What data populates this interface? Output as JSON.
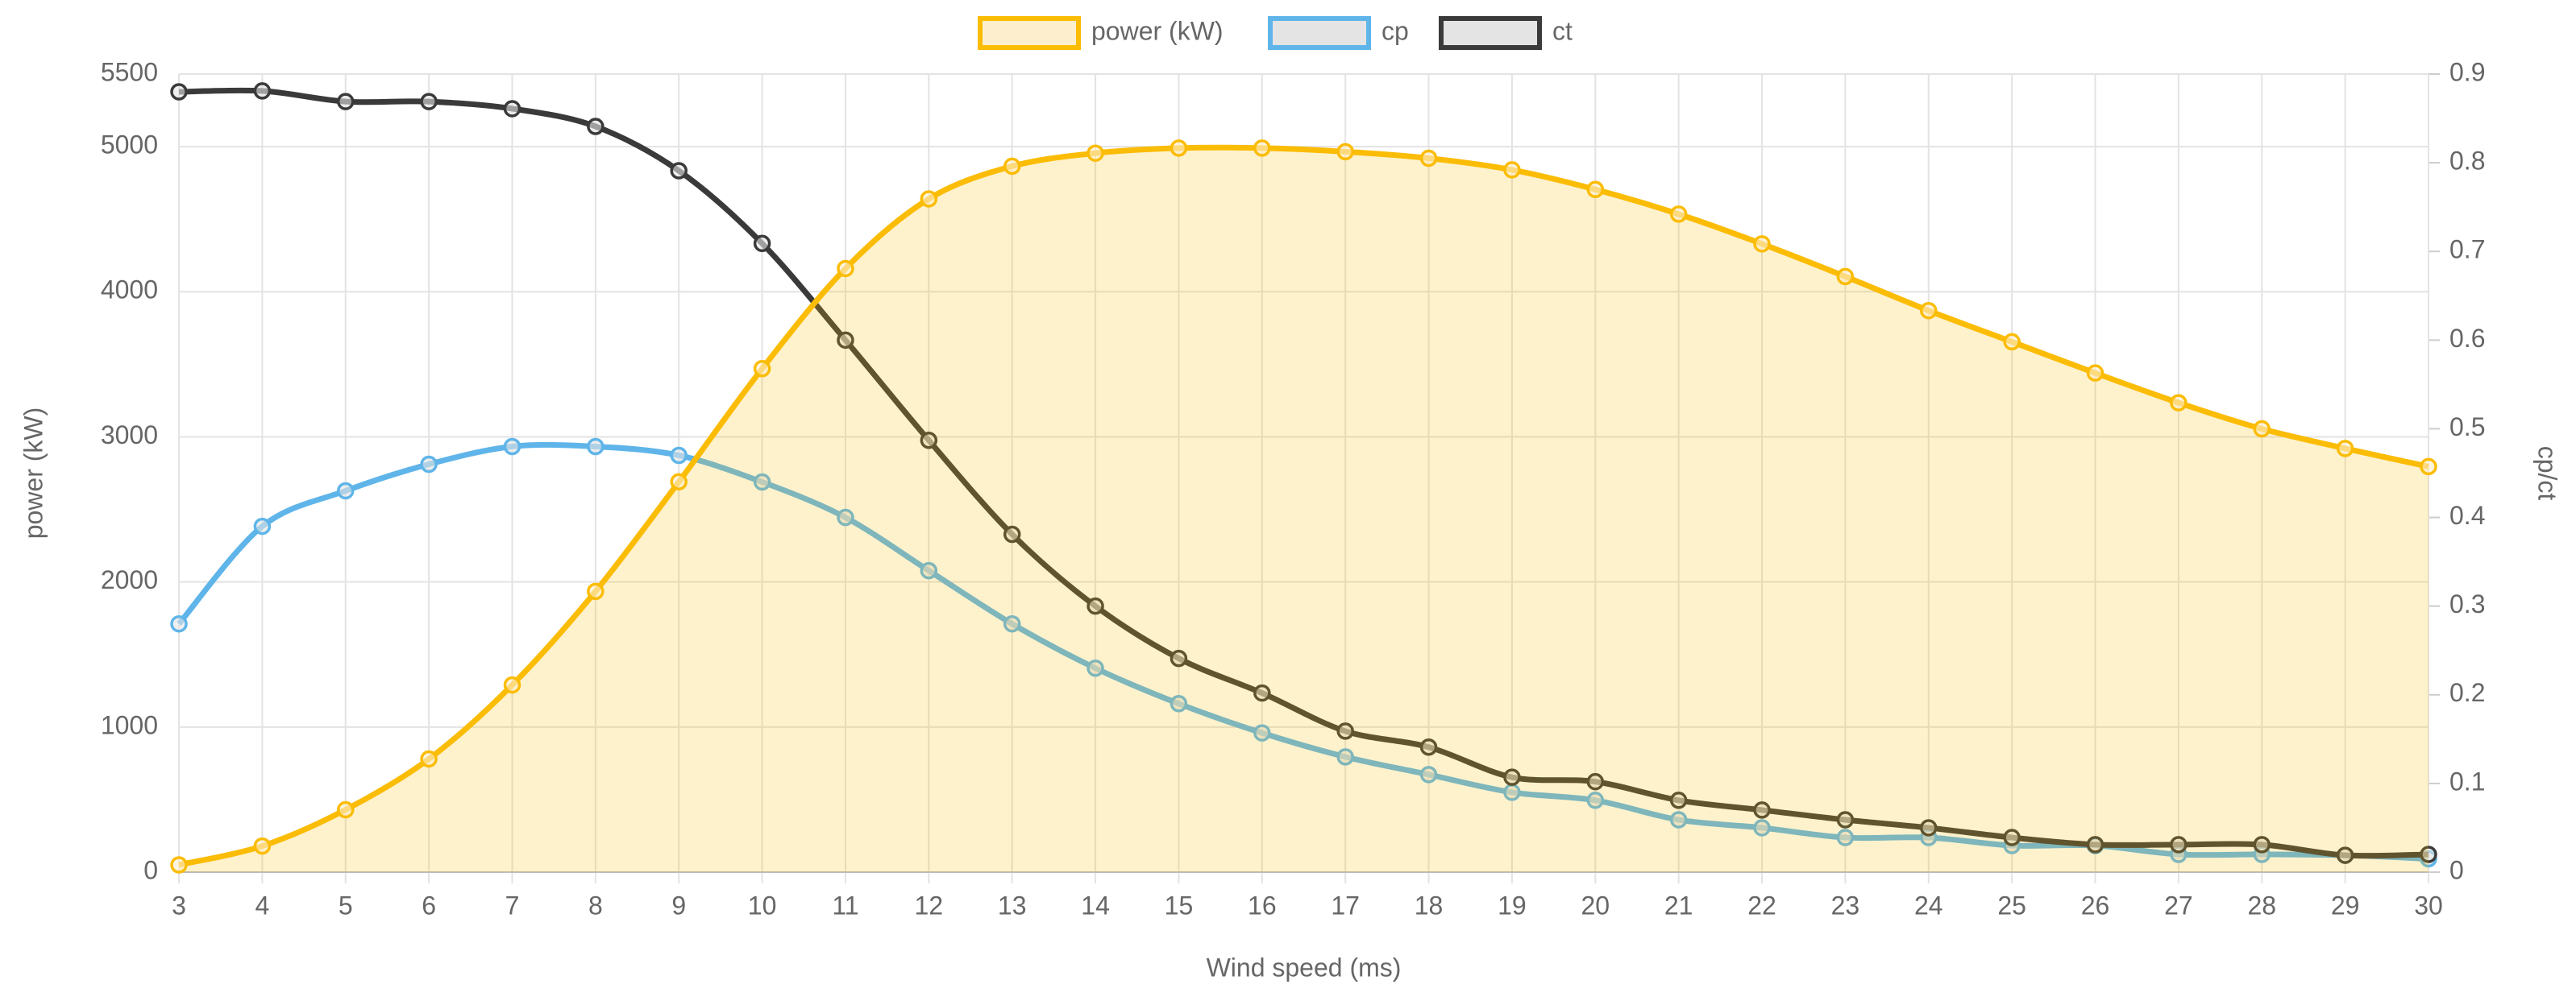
{
  "chart_data": {
    "type": "line",
    "x_label": "Wind speed (ms)",
    "y_label": "power (kW)",
    "y2_label": "cp/ct",
    "x": [
      3,
      4,
      5,
      6,
      7,
      8,
      9,
      10,
      11,
      12,
      13,
      14,
      15,
      16,
      17,
      18,
      19,
      20,
      21,
      22,
      23,
      24,
      25,
      26,
      27,
      28,
      29,
      30
    ],
    "xlim": [
      3,
      30
    ],
    "xticks": [
      3,
      4,
      5,
      6,
      7,
      8,
      9,
      10,
      11,
      12,
      13,
      14,
      15,
      16,
      17,
      18,
      19,
      20,
      21,
      22,
      23,
      24,
      25,
      26,
      27,
      28,
      29,
      30
    ],
    "ylim": [
      0,
      5500
    ],
    "yticks": [
      0,
      1000,
      2000,
      3000,
      4000,
      5000,
      5500
    ],
    "y2lim": [
      0,
      0.9
    ],
    "y2ticks": [
      0,
      0.1,
      0.2,
      0.3,
      0.4,
      0.5,
      0.6,
      0.7,
      0.8,
      0.9
    ],
    "grid": true,
    "legend_position": "top",
    "series": [
      {
        "name": "power (kW)",
        "color": "#fbbc05",
        "fill": "#fdefcd",
        "axis": "y",
        "values": [
          50,
          180,
          430,
          780,
          1290,
          1935,
          2690,
          3470,
          4160,
          4640,
          4865,
          4955,
          4990,
          4990,
          4965,
          4920,
          4840,
          4705,
          4535,
          4330,
          4105,
          3870,
          3655,
          3440,
          3235,
          3055,
          2920,
          2795
        ]
      },
      {
        "name": "cp",
        "color": "#5fb5e9",
        "fill": "#e4e4e4",
        "axis": "y2",
        "values": [
          0.28,
          0.39,
          0.43,
          0.46,
          0.48,
          0.48,
          0.47,
          0.44,
          0.4,
          0.34,
          0.28,
          0.23,
          0.19,
          0.157,
          0.13,
          0.11,
          0.09,
          0.081,
          0.059,
          0.05,
          0.039,
          0.039,
          0.03,
          0.03,
          0.02,
          0.02,
          0.019,
          0.015
        ]
      },
      {
        "name": "ct",
        "color": "#3a3a3a",
        "fill": "#e4e4e4",
        "axis": "y2",
        "values": [
          0.88,
          0.881,
          0.869,
          0.869,
          0.861,
          0.841,
          0.791,
          0.709,
          0.6,
          0.487,
          0.381,
          0.3,
          0.241,
          0.202,
          0.159,
          0.141,
          0.107,
          0.102,
          0.081,
          0.07,
          0.059,
          0.05,
          0.039,
          0.031,
          0.031,
          0.031,
          0.019,
          0.02
        ]
      }
    ]
  }
}
